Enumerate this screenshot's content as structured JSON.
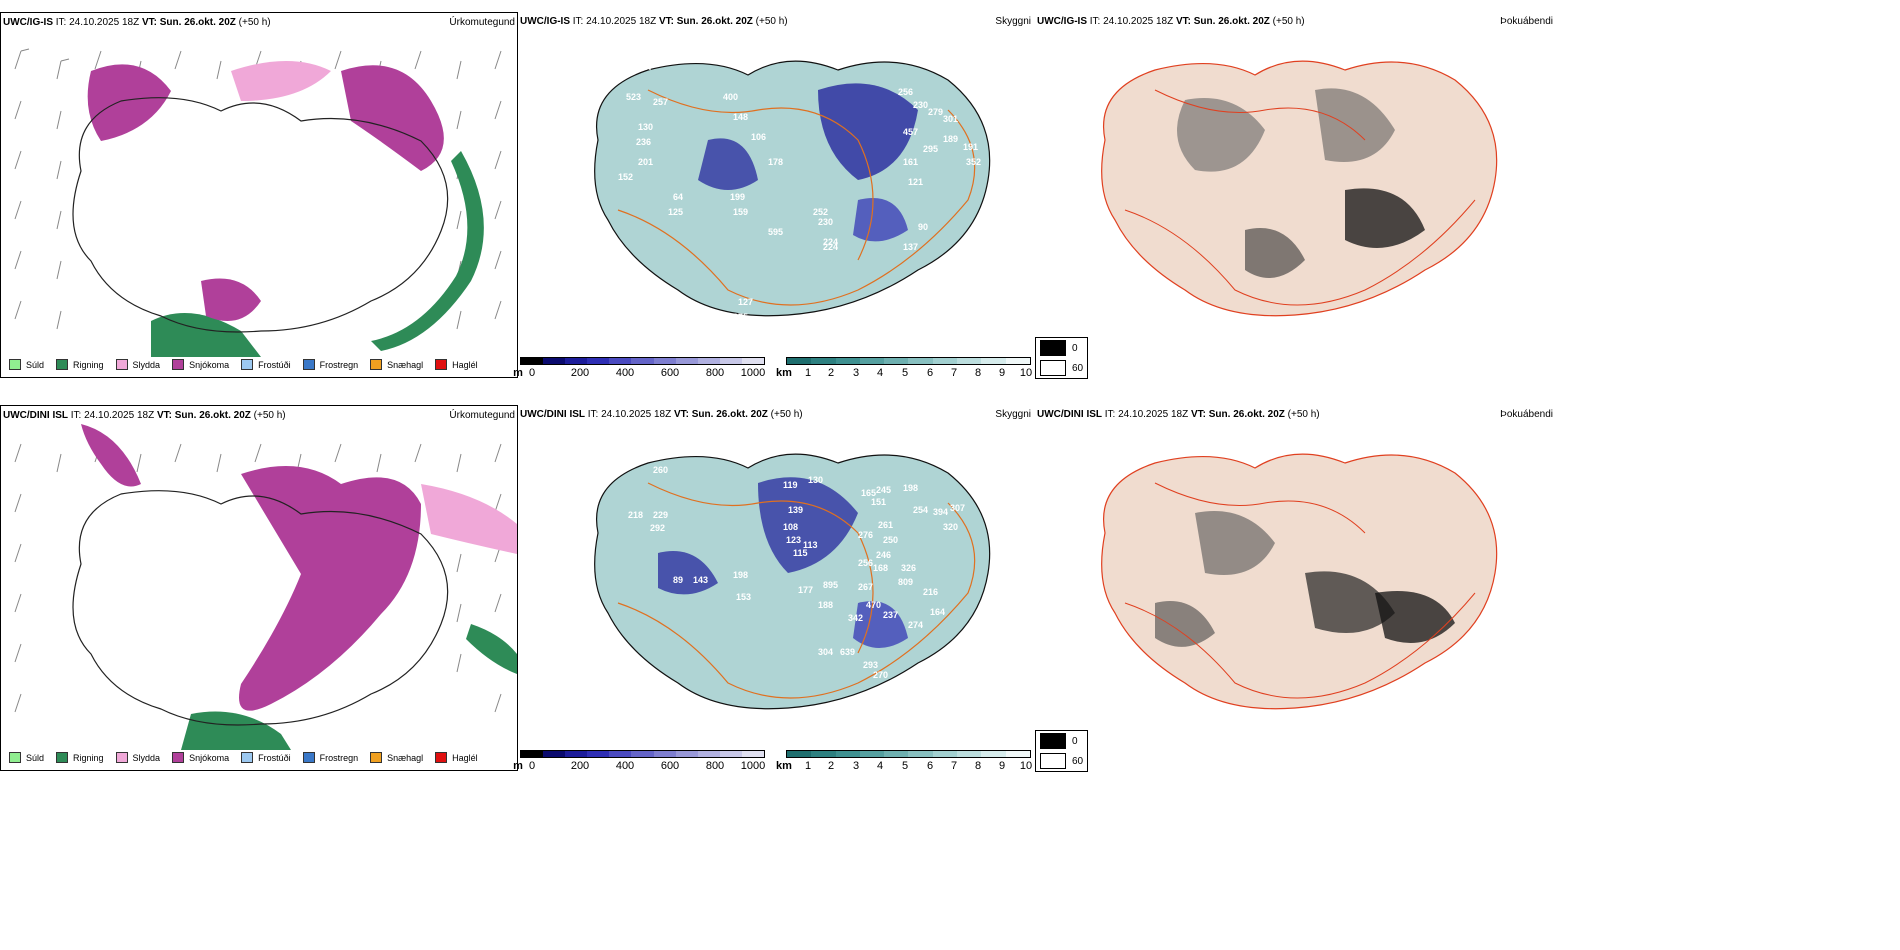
{
  "rows": [
    {
      "model": "UWC/IG-IS",
      "it_label": "IT:",
      "it_value": "24.10.2025 18Z",
      "vt_label": "VT:",
      "vt_value": "Sun. 26.okt. 20Z",
      "lead": "(+50 h)",
      "panels": [
        "Úrkomutegund",
        "Skyggni",
        "Þokuábendi"
      ]
    },
    {
      "model": "UWC/DINI ISL",
      "it_label": "IT:",
      "it_value": "24.10.2025 18Z",
      "vt_label": "VT:",
      "vt_value": "Sun. 26.okt. 20Z",
      "lead": "(+50 h)",
      "panels": [
        "Úrkomutegund",
        "Skyggni",
        "Þokuábendi"
      ]
    }
  ],
  "precip_legend": [
    {
      "label": "Súld",
      "color": "#90ee90"
    },
    {
      "label": "Rigning",
      "color": "#2e8b57"
    },
    {
      "label": "Slydda",
      "color": "#f0a8d8"
    },
    {
      "label": "Snjókoma",
      "color": "#b0409a"
    },
    {
      "label": "Frostúði",
      "color": "#9cc8f0"
    },
    {
      "label": "Frostregn",
      "color": "#3a78c8"
    },
    {
      "label": "Snæhagl",
      "color": "#f0a020"
    },
    {
      "label": "Haglél",
      "color": "#e01010"
    }
  ],
  "cloud_colorbar": {
    "unit": "m",
    "ticks": [
      "0",
      "200",
      "400",
      "600",
      "800",
      "1000"
    ],
    "colors": [
      "#000000",
      "#0a0a6e",
      "#1c1c9a",
      "#2e2eb4",
      "#4a4ac0",
      "#6464c8",
      "#7e7ed0",
      "#9898d8",
      "#b0b0e0",
      "#c8c8e8",
      "#e0e0f0"
    ]
  },
  "vis_colorbar": {
    "unit": "km",
    "ticks": [
      "1",
      "2",
      "3",
      "4",
      "5",
      "6",
      "7",
      "8",
      "9",
      "10"
    ],
    "colors": [
      "#1e6e6e",
      "#2d8080",
      "#3e9090",
      "#55a0a0",
      "#6eb0b0",
      "#88c0c0",
      "#a2d0d0",
      "#bcdede",
      "#d6ecec",
      "#f0f8f8"
    ]
  },
  "fog_scale": {
    "low": "0",
    "high": "60"
  },
  "visibility_labels": [
    {
      "row": 0,
      "values": [
        "287",
        "523",
        "257",
        "400",
        "148",
        "130",
        "236",
        "201",
        "106",
        "178",
        "152",
        "64",
        "199",
        "159",
        "125",
        "595",
        "252",
        "230",
        "224",
        "224",
        "127",
        "275",
        "423",
        "256",
        "230",
        "279",
        "301",
        "457",
        "189",
        "295",
        "191",
        "161",
        "121",
        "90",
        "137",
        "352"
      ]
    },
    {
      "row": 1,
      "values": [
        "178",
        "260",
        "218",
        "229",
        "292",
        "119",
        "130",
        "139",
        "108",
        "123",
        "113",
        "115",
        "198",
        "89",
        "143",
        "153",
        "177",
        "188",
        "342",
        "470",
        "237",
        "304",
        "639",
        "293",
        "270",
        "895",
        "267",
        "256",
        "168",
        "246",
        "250",
        "276",
        "261",
        "326",
        "809",
        "216",
        "164",
        "274",
        "198",
        "254",
        "394",
        "307",
        "320",
        "151",
        "165",
        "245"
      ]
    }
  ]
}
